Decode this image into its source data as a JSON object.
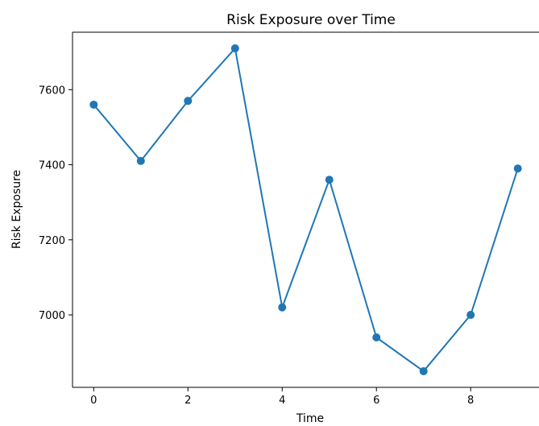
{
  "chart_data": {
    "type": "line",
    "title": "Risk Exposure over Time",
    "xlabel": "Time",
    "ylabel": "Risk Exposure",
    "x": [
      0,
      1,
      2,
      3,
      4,
      5,
      6,
      7,
      8,
      9
    ],
    "series": [
      {
        "values": [
          7560,
          7410,
          7570,
          7710,
          7020,
          7360,
          6940,
          6850,
          7000,
          7390
        ]
      }
    ],
    "xlim": [
      -0.45,
      9.45
    ],
    "ylim": [
      6807,
      7753
    ],
    "xticks": [
      "0",
      "2",
      "4",
      "6",
      "8"
    ],
    "yticks": [
      "7000",
      "7200",
      "7400",
      "7600"
    ],
    "grid": false,
    "color": "#1f77b4"
  }
}
